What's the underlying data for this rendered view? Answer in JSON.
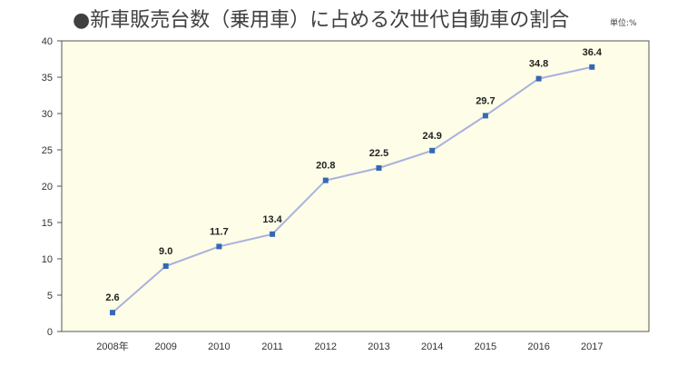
{
  "title": "●新車販売台数（乗用車）に占める次世代自動車の割合",
  "unit_label": "単位:%",
  "colors": {
    "plot_background": "#fdfde8",
    "line": "#a9b1dd",
    "marker": "#3568b4",
    "axis": "#555555"
  },
  "chart_data": {
    "type": "line",
    "title": "●新車販売台数（乗用車）に占める次世代自動車の割合",
    "xlabel": "",
    "ylabel": "",
    "unit": "単位:%",
    "categories": [
      "2008年",
      "2009",
      "2010",
      "2011",
      "2012",
      "2013",
      "2014",
      "2015",
      "2016",
      "2017"
    ],
    "series": [
      {
        "values": [
          2.6,
          9.0,
          11.7,
          13.4,
          20.8,
          22.5,
          24.9,
          29.7,
          34.8,
          36.4
        ]
      }
    ],
    "data_labels": [
      "2.6",
      "9.0",
      "11.7",
      "13.4",
      "20.8",
      "22.5",
      "24.9",
      "29.7",
      "34.8",
      "36.4"
    ],
    "ylim": [
      0,
      40
    ],
    "yticks": [
      "0",
      "5",
      "10",
      "15",
      "20",
      "25",
      "30",
      "35",
      "40"
    ],
    "grid": false,
    "legend": "none"
  }
}
